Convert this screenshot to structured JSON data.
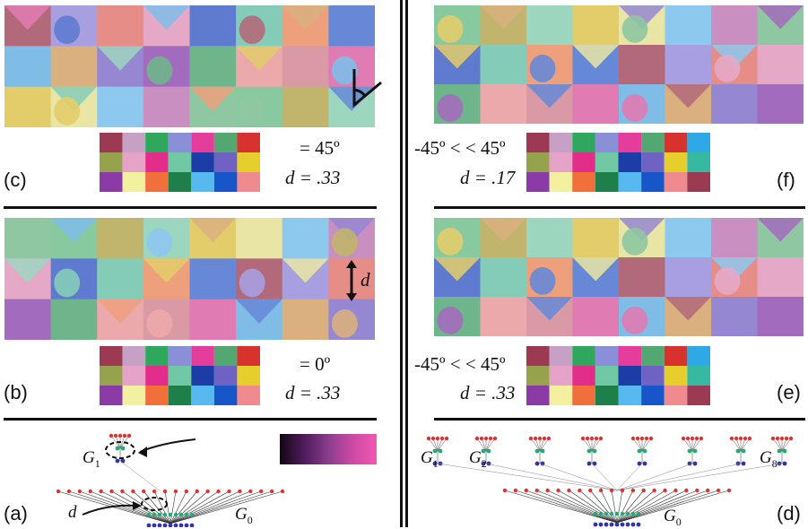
{
  "panels": {
    "a": {
      "label": "(a)",
      "g1": "G",
      "g1_sub": "1",
      "g0": "G",
      "g0_sub": "0",
      "d": "d"
    },
    "b": {
      "label": "(b)",
      "eq_angle": "= 0º",
      "eq_d": "d = .33"
    },
    "c": {
      "label": "(c)",
      "eq_angle": "= 45º",
      "eq_d": "d = .33"
    },
    "d": {
      "label": "(d)",
      "g1": "G",
      "g1_sub": "1",
      "g2": "G",
      "g2_sub": "2",
      "g8": "G",
      "g8_sub": "8",
      "g0": "G",
      "g0_sub": "0"
    },
    "e": {
      "label": "(e)",
      "eq_angle": "-45º <   < 45º",
      "eq_d": "d = .33"
    },
    "f": {
      "label": "(f)",
      "eq_angle": "-45º <   < 45º",
      "eq_d": "d = .17"
    }
  },
  "annotation_d": "d",
  "colors": {
    "palette": [
      "#9b3a52",
      "#c7a0c6",
      "#2fa85e",
      "#8a8fd8",
      "#e43d9c",
      "#52a870",
      "#d8322f",
      "#2ea9e6",
      "#97a24c",
      "#e4a3c7",
      "#e22d8a",
      "#70c8a5",
      "#1d3da6",
      "#6f62c4",
      "#e6cf2d",
      "#36b9a0",
      "#8a3ba6",
      "#f3f0a0",
      "#f06f3a",
      "#1e7f4a",
      "#56b9ef",
      "#1756c9",
      "#ef8a8e"
    ],
    "gradient": [
      "#120712",
      "#4e1b5b",
      "#8a3d8c",
      "#cc4aa4",
      "#f057b1"
    ]
  }
}
